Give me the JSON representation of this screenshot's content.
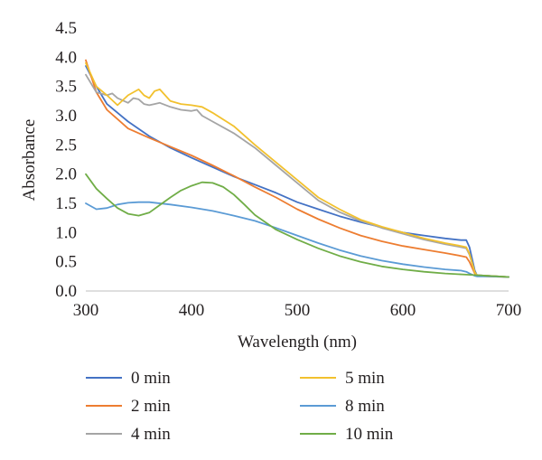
{
  "chart_data": {
    "type": "line",
    "title": "",
    "xlabel": "Wavelength (nm)",
    "ylabel": "Absorbance",
    "xlim": [
      300,
      700
    ],
    "ylim": [
      0,
      4.5
    ],
    "x_ticks": [
      "300",
      "400",
      "500",
      "600",
      "700"
    ],
    "y_ticks": [
      "0.0",
      "0.5",
      "1.0",
      "1.5",
      "2.0",
      "2.5",
      "3.0",
      "3.5",
      "4.0",
      "4.5"
    ],
    "grid": false,
    "legend_position": "bottom",
    "series": [
      {
        "name": "0 min",
        "color": "#4472c4",
        "x": [
          300,
          310,
          320,
          340,
          360,
          380,
          400,
          420,
          440,
          460,
          480,
          500,
          520,
          540,
          560,
          580,
          600,
          620,
          640,
          655,
          660,
          663,
          668,
          670,
          680,
          700
        ],
        "y": [
          3.85,
          3.5,
          3.2,
          2.9,
          2.65,
          2.45,
          2.28,
          2.12,
          1.96,
          1.82,
          1.68,
          1.52,
          1.4,
          1.28,
          1.18,
          1.09,
          1.0,
          0.95,
          0.9,
          0.87,
          0.87,
          0.75,
          0.35,
          0.27,
          0.26,
          0.24
        ]
      },
      {
        "name": "2 min",
        "color": "#ed7d31",
        "x": [
          300,
          310,
          320,
          340,
          360,
          380,
          400,
          420,
          440,
          460,
          480,
          500,
          520,
          540,
          560,
          580,
          600,
          620,
          640,
          655,
          660,
          663,
          668,
          670,
          680,
          700
        ],
        "y": [
          3.95,
          3.4,
          3.1,
          2.78,
          2.62,
          2.47,
          2.32,
          2.15,
          1.97,
          1.78,
          1.6,
          1.4,
          1.23,
          1.08,
          0.95,
          0.85,
          0.77,
          0.71,
          0.65,
          0.6,
          0.58,
          0.5,
          0.3,
          0.26,
          0.25,
          0.24
        ]
      },
      {
        "name": "4 min",
        "color": "#a5a5a5",
        "x": [
          300,
          310,
          320,
          325,
          330,
          340,
          345,
          350,
          355,
          360,
          365,
          370,
          380,
          390,
          400,
          405,
          410,
          420,
          440,
          460,
          480,
          500,
          520,
          540,
          560,
          580,
          600,
          620,
          640,
          655,
          660,
          663,
          668,
          670,
          680,
          700
        ],
        "y": [
          3.7,
          3.4,
          3.35,
          3.38,
          3.3,
          3.22,
          3.3,
          3.28,
          3.2,
          3.18,
          3.2,
          3.22,
          3.15,
          3.1,
          3.08,
          3.1,
          3.0,
          2.9,
          2.7,
          2.45,
          2.15,
          1.85,
          1.55,
          1.35,
          1.2,
          1.08,
          0.98,
          0.88,
          0.8,
          0.75,
          0.73,
          0.62,
          0.32,
          0.27,
          0.26,
          0.24
        ]
      },
      {
        "name": "5 min",
        "color": "#f2c12e",
        "x": [
          300,
          310,
          320,
          330,
          340,
          350,
          355,
          360,
          365,
          370,
          375,
          380,
          390,
          400,
          410,
          420,
          440,
          460,
          480,
          500,
          520,
          540,
          560,
          580,
          600,
          620,
          640,
          655,
          660,
          663,
          668,
          670,
          680,
          700
        ],
        "y": [
          3.9,
          3.5,
          3.35,
          3.18,
          3.35,
          3.45,
          3.35,
          3.3,
          3.42,
          3.45,
          3.35,
          3.25,
          3.2,
          3.18,
          3.15,
          3.05,
          2.82,
          2.5,
          2.2,
          1.9,
          1.6,
          1.4,
          1.22,
          1.1,
          1.0,
          0.9,
          0.82,
          0.77,
          0.75,
          0.64,
          0.32,
          0.27,
          0.26,
          0.24
        ]
      },
      {
        "name": "8 min",
        "color": "#5b9bd5",
        "x": [
          300,
          310,
          320,
          330,
          340,
          350,
          360,
          380,
          400,
          420,
          440,
          460,
          480,
          500,
          520,
          540,
          560,
          580,
          600,
          620,
          640,
          655,
          660,
          663,
          668,
          670,
          680,
          700
        ],
        "y": [
          1.5,
          1.4,
          1.42,
          1.48,
          1.51,
          1.52,
          1.52,
          1.48,
          1.43,
          1.37,
          1.29,
          1.2,
          1.08,
          0.95,
          0.82,
          0.7,
          0.6,
          0.52,
          0.46,
          0.41,
          0.37,
          0.35,
          0.33,
          0.3,
          0.26,
          0.25,
          0.25,
          0.24
        ]
      },
      {
        "name": "10 min",
        "color": "#70ad47",
        "x": [
          300,
          310,
          320,
          330,
          340,
          350,
          360,
          370,
          380,
          390,
          400,
          410,
          420,
          430,
          440,
          450,
          460,
          480,
          500,
          520,
          540,
          560,
          580,
          600,
          620,
          640,
          660,
          670,
          680,
          700
        ],
        "y": [
          2.0,
          1.75,
          1.58,
          1.42,
          1.32,
          1.29,
          1.34,
          1.47,
          1.6,
          1.72,
          1.8,
          1.86,
          1.85,
          1.78,
          1.65,
          1.48,
          1.3,
          1.05,
          0.88,
          0.73,
          0.6,
          0.5,
          0.42,
          0.37,
          0.33,
          0.3,
          0.28,
          0.27,
          0.26,
          0.24
        ]
      }
    ]
  }
}
